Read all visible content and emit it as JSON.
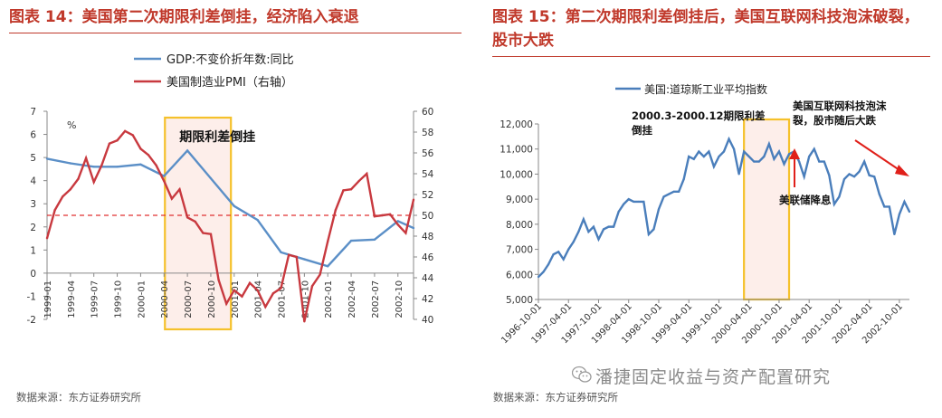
{
  "left_panel": {
    "title": "图表 14：美国第二次期限利差倒挂，经济陷入衰退",
    "legend_gdp": "GDP:不变价折年数:同比",
    "legend_pmi": "美国制造业PMI（右轴）",
    "unit_label": "%",
    "annotation": "期限利差倒挂",
    "source": "数据来源：东方证券研究所"
  },
  "right_panel": {
    "title": "图表 15：第二次期限利差倒挂后，美国互联网科技泡沫破裂，股市大跌",
    "legend_dow": "美国:道琼斯工业平均指数",
    "annotation_range": "2000.3-2000.12期限利差倒挂",
    "annotation_bubble": "美国互联网科技泡沫破裂，股市随后大跌",
    "annotation_fed": "美联储降息",
    "source": "数据来源：东方证券研究所"
  },
  "watermark": "潘捷固定收益与资产配置研究",
  "colors": {
    "title_red": "#c0392b",
    "gdp_blue": "#5b8fc7",
    "pmi_red": "#c8393f",
    "highlight_gold": "#f5c12b",
    "dow_blue": "#4a7ebb"
  },
  "chart_data": [
    {
      "type": "line",
      "x_ticks": [
        "1999-01",
        "1999-04",
        "1999-07",
        "1999-10",
        "2000-01",
        "2000-04",
        "2000-07",
        "2000-10",
        "2001-01",
        "2001-04",
        "2001-07",
        "2001-10",
        "2002-01",
        "2002-04",
        "2002-07",
        "2002-10"
      ],
      "ylim_left": [
        -2,
        7
      ],
      "ylim_right": [
        40,
        60
      ],
      "yticks_left": [
        -2,
        -1,
        0,
        1,
        2,
        3,
        4,
        5,
        6,
        7
      ],
      "yticks_right": [
        40,
        42,
        44,
        46,
        48,
        50,
        52,
        54,
        56,
        58,
        60
      ],
      "reference_line_right": 50,
      "highlight_range": [
        "2000-04",
        "2000-12"
      ],
      "series": [
        {
          "name": "GDP:不变价折年数:同比",
          "axis": "left",
          "x": [
            0,
            3,
            6,
            9,
            12,
            15,
            18,
            21,
            24,
            27,
            30,
            33,
            36,
            39,
            42,
            45,
            47
          ],
          "values": [
            4.95,
            4.75,
            4.6,
            4.6,
            4.7,
            4.2,
            5.3,
            4.1,
            2.9,
            2.3,
            0.9,
            0.6,
            0.3,
            1.4,
            1.45,
            2.25,
            1.95
          ]
        },
        {
          "name": "美国制造业PMI（右轴）",
          "axis": "right",
          "x": [
            0,
            1,
            2,
            3,
            4,
            5,
            6,
            7,
            8,
            9,
            10,
            11,
            12,
            13,
            14,
            15,
            16,
            17,
            18,
            19,
            20,
            21,
            22,
            23,
            24,
            25,
            26,
            27,
            28,
            29,
            30,
            31,
            32,
            33,
            34,
            35,
            36,
            37,
            38,
            39,
            40,
            41,
            42,
            43,
            44,
            45,
            46,
            47
          ],
          "values": [
            47.8,
            50.5,
            51.8,
            52.5,
            53.5,
            55.5,
            53.2,
            54.8,
            56.9,
            57.2,
            58.1,
            57.7,
            56.4,
            55.8,
            54.8,
            53.3,
            51.6,
            52.5,
            49.8,
            49.4,
            48.3,
            48.2,
            43.8,
            41.5,
            42.8,
            42.2,
            43.5,
            42.8,
            41.2,
            42.5,
            43.0,
            46.2,
            46.0,
            39.8,
            43.2,
            44.3,
            47.5,
            50.5,
            52.4,
            52.5,
            53.3,
            54.0,
            49.9,
            50.0,
            50.1,
            49.1,
            48.3,
            51.5
          ]
        }
      ]
    },
    {
      "type": "line",
      "x_ticks": [
        "1996-10-01",
        "1997-04-01",
        "1997-10-01",
        "1998-04-01",
        "1998-10-01",
        "1999-04-01",
        "1999-10-01",
        "2000-04-01",
        "2000-10-01",
        "2001-04-01",
        "2001-10-01",
        "2002-04-01",
        "2002-10-01"
      ],
      "ylim": [
        5000,
        12000
      ],
      "yticks": [
        5000,
        6000,
        7000,
        8000,
        9000,
        10000,
        11000,
        12000
      ],
      "highlight_range": [
        "2000-03",
        "2000-12"
      ],
      "series": [
        {
          "name": "美国:道琼斯工业平均指数",
          "x": [
            "1996-10",
            "1996-11",
            "1996-12",
            "1997-01",
            "1997-02",
            "1997-03",
            "1997-04",
            "1997-05",
            "1997-06",
            "1997-07",
            "1997-08",
            "1997-09",
            "1997-10",
            "1997-11",
            "1997-12",
            "1998-01",
            "1998-02",
            "1998-03",
            "1998-04",
            "1998-05",
            "1998-06",
            "1998-07",
            "1998-08",
            "1998-09",
            "1998-10",
            "1998-11",
            "1998-12",
            "1999-01",
            "1999-02",
            "1999-03",
            "1999-04",
            "1999-05",
            "1999-06",
            "1999-07",
            "1999-08",
            "1999-09",
            "1999-10",
            "1999-11",
            "1999-12",
            "2000-01",
            "2000-02",
            "2000-03",
            "2000-04",
            "2000-05",
            "2000-06",
            "2000-07",
            "2000-08",
            "2000-09",
            "2000-10",
            "2000-11",
            "2000-12",
            "2001-01",
            "2001-02",
            "2001-03",
            "2001-04",
            "2001-05",
            "2001-06",
            "2001-07",
            "2001-08",
            "2001-09",
            "2001-10",
            "2001-11",
            "2001-12",
            "2002-01",
            "2002-02",
            "2002-03",
            "2002-04",
            "2002-05",
            "2002-06",
            "2002-07",
            "2002-08",
            "2002-09",
            "2002-10",
            "2002-11",
            "2002-12"
          ],
          "values": [
            5900,
            6100,
            6400,
            6800,
            6900,
            6600,
            7000,
            7300,
            7700,
            8200,
            7700,
            7900,
            7400,
            7800,
            7900,
            7900,
            8500,
            8800,
            9000,
            8900,
            8900,
            8900,
            7600,
            7800,
            8600,
            9100,
            9200,
            9300,
            9300,
            9800,
            10700,
            10600,
            10900,
            10700,
            10900,
            10300,
            10700,
            10900,
            11400,
            11000,
            10000,
            10900,
            10700,
            10500,
            10500,
            10700,
            11200,
            10600,
            10900,
            10400,
            10800,
            10900,
            10500,
            9900,
            10700,
            11000,
            10500,
            10500,
            9950,
            8800,
            9100,
            9800,
            10000,
            9900,
            10100,
            10500,
            9950,
            9900,
            9200,
            8700,
            8700,
            7600,
            8400,
            8900,
            8500
          ]
        }
      ]
    }
  ]
}
